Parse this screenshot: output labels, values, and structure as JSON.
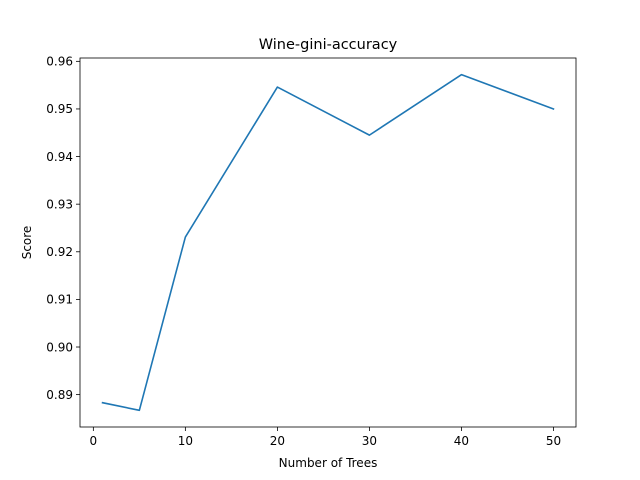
{
  "chart_data": {
    "type": "line",
    "title": "Wine-gini-accuracy",
    "xlabel": "Number of Trees",
    "ylabel": "Score",
    "x": [
      1,
      5,
      10,
      20,
      30,
      40,
      50
    ],
    "series": [
      {
        "values": [
          0.8883,
          0.8867,
          0.9231,
          0.9546,
          0.9445,
          0.9572,
          0.95
        ],
        "color": "#1f77b4"
      }
    ],
    "xlim": [
      -1.45,
      52.45
    ],
    "ylim": [
      0.8832,
      0.9607
    ],
    "xticks": [
      0,
      10,
      20,
      30,
      40,
      50
    ],
    "xtick_labels": [
      "0",
      "10",
      "20",
      "30",
      "40",
      "50"
    ],
    "yticks": [
      0.89,
      0.9,
      0.91,
      0.92,
      0.93,
      0.94,
      0.95,
      0.96
    ],
    "ytick_labels": [
      "0.89",
      "0.90",
      "0.91",
      "0.92",
      "0.93",
      "0.94",
      "0.95",
      "0.96"
    ],
    "grid": false,
    "legend": "none"
  }
}
